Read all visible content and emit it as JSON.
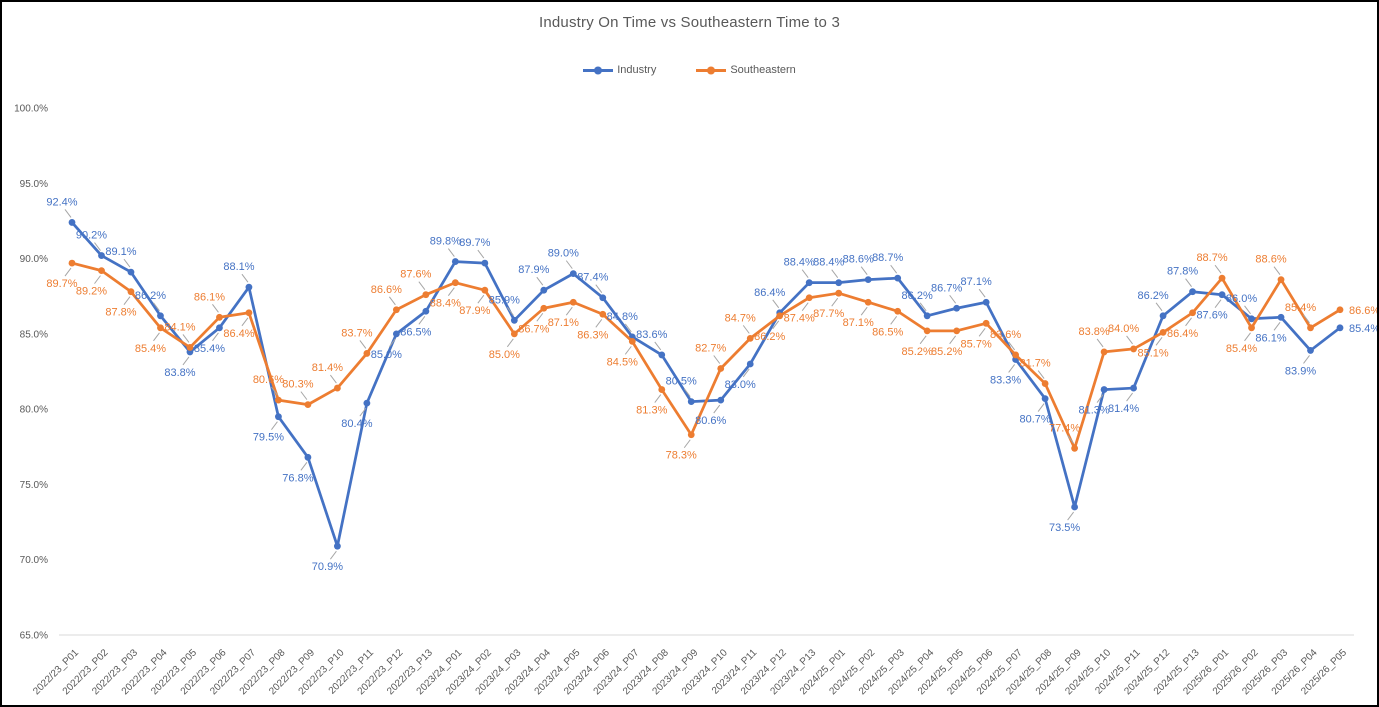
{
  "title": "Industry On Time vs Southeastern Time to 3",
  "legend": {
    "items": [
      {
        "label": "Industry",
        "color": "#4472C4"
      },
      {
        "label": "Southeastern",
        "color": "#ED7D31"
      }
    ]
  },
  "axes": {
    "y_tick_labels": [
      "100.0%",
      "95.0%",
      "90.0%",
      "85.0%",
      "80.0%",
      "75.0%",
      "70.0%",
      "65.0%"
    ],
    "axis_line_color": "#D9D9D9",
    "tick_text_color": "#595959"
  },
  "chart_data": {
    "type": "line",
    "title": "Industry On Time vs Southeastern Time to 3",
    "xlabel": "",
    "ylabel": "",
    "ylim": [
      65,
      100
    ],
    "ytick_step": 5,
    "grid": false,
    "legend_position": "top",
    "data_labels": true,
    "label_format": "0.0%",
    "categories": [
      "2022/23_P01",
      "2022/23_P02",
      "2022/23_P03",
      "2022/23_P04",
      "2022/23_P05",
      "2022/23_P06",
      "2022/23_P07",
      "2022/23_P08",
      "2022/23_P09",
      "2022/23_P10",
      "2022/23_P11",
      "2022/23_P12",
      "2022/23_P13",
      "2023/24_P01",
      "2023/24_P02",
      "2023/24_P03",
      "2023/24_P04",
      "2023/24_P05",
      "2023/24_P06",
      "2023/24_P07",
      "2023/24_P08",
      "2023/24_P09",
      "2023/24_P10",
      "2023/24_P11",
      "2023/24_P12",
      "2023/24_P13",
      "2024/25_P01",
      "2024/25_P02",
      "2024/25_P03",
      "2024/25_P04",
      "2024/25_P05",
      "2024/25_P06",
      "2024/25_P07",
      "2024/25_P08",
      "2024/25_P09",
      "2024/25_P10",
      "2024/25_P11",
      "2024/25_P12",
      "2024/25_P13",
      "2025/26_P01",
      "2025/26_P02",
      "2025/26_P03",
      "2025/26_P04",
      "2025/26_P05"
    ],
    "series": [
      {
        "name": "Industry",
        "color": "#4472C4",
        "values": [
          92.4,
          90.2,
          89.1,
          86.2,
          83.8,
          85.4,
          88.1,
          79.5,
          76.8,
          70.9,
          80.4,
          85.0,
          86.5,
          89.8,
          89.7,
          85.9,
          87.9,
          89.0,
          87.4,
          84.8,
          83.6,
          80.5,
          80.6,
          83.0,
          86.4,
          88.4,
          88.4,
          88.6,
          88.7,
          86.2,
          86.7,
          87.1,
          83.3,
          80.7,
          73.5,
          81.3,
          81.4,
          86.2,
          87.8,
          87.6,
          86.0,
          86.1,
          83.9,
          85.4
        ]
      },
      {
        "name": "Southeastern",
        "color": "#ED7D31",
        "values": [
          89.7,
          89.2,
          87.8,
          85.4,
          84.1,
          86.1,
          86.4,
          80.6,
          80.3,
          81.4,
          83.7,
          86.6,
          87.6,
          88.4,
          87.9,
          85.0,
          86.7,
          87.1,
          86.3,
          84.5,
          81.3,
          78.3,
          82.7,
          84.7,
          86.2,
          87.4,
          87.7,
          87.1,
          86.5,
          85.2,
          85.2,
          85.7,
          83.6,
          81.7,
          77.4,
          83.8,
          84.0,
          85.1,
          86.4,
          88.7,
          85.4,
          88.6,
          85.4,
          86.6
        ]
      }
    ]
  }
}
